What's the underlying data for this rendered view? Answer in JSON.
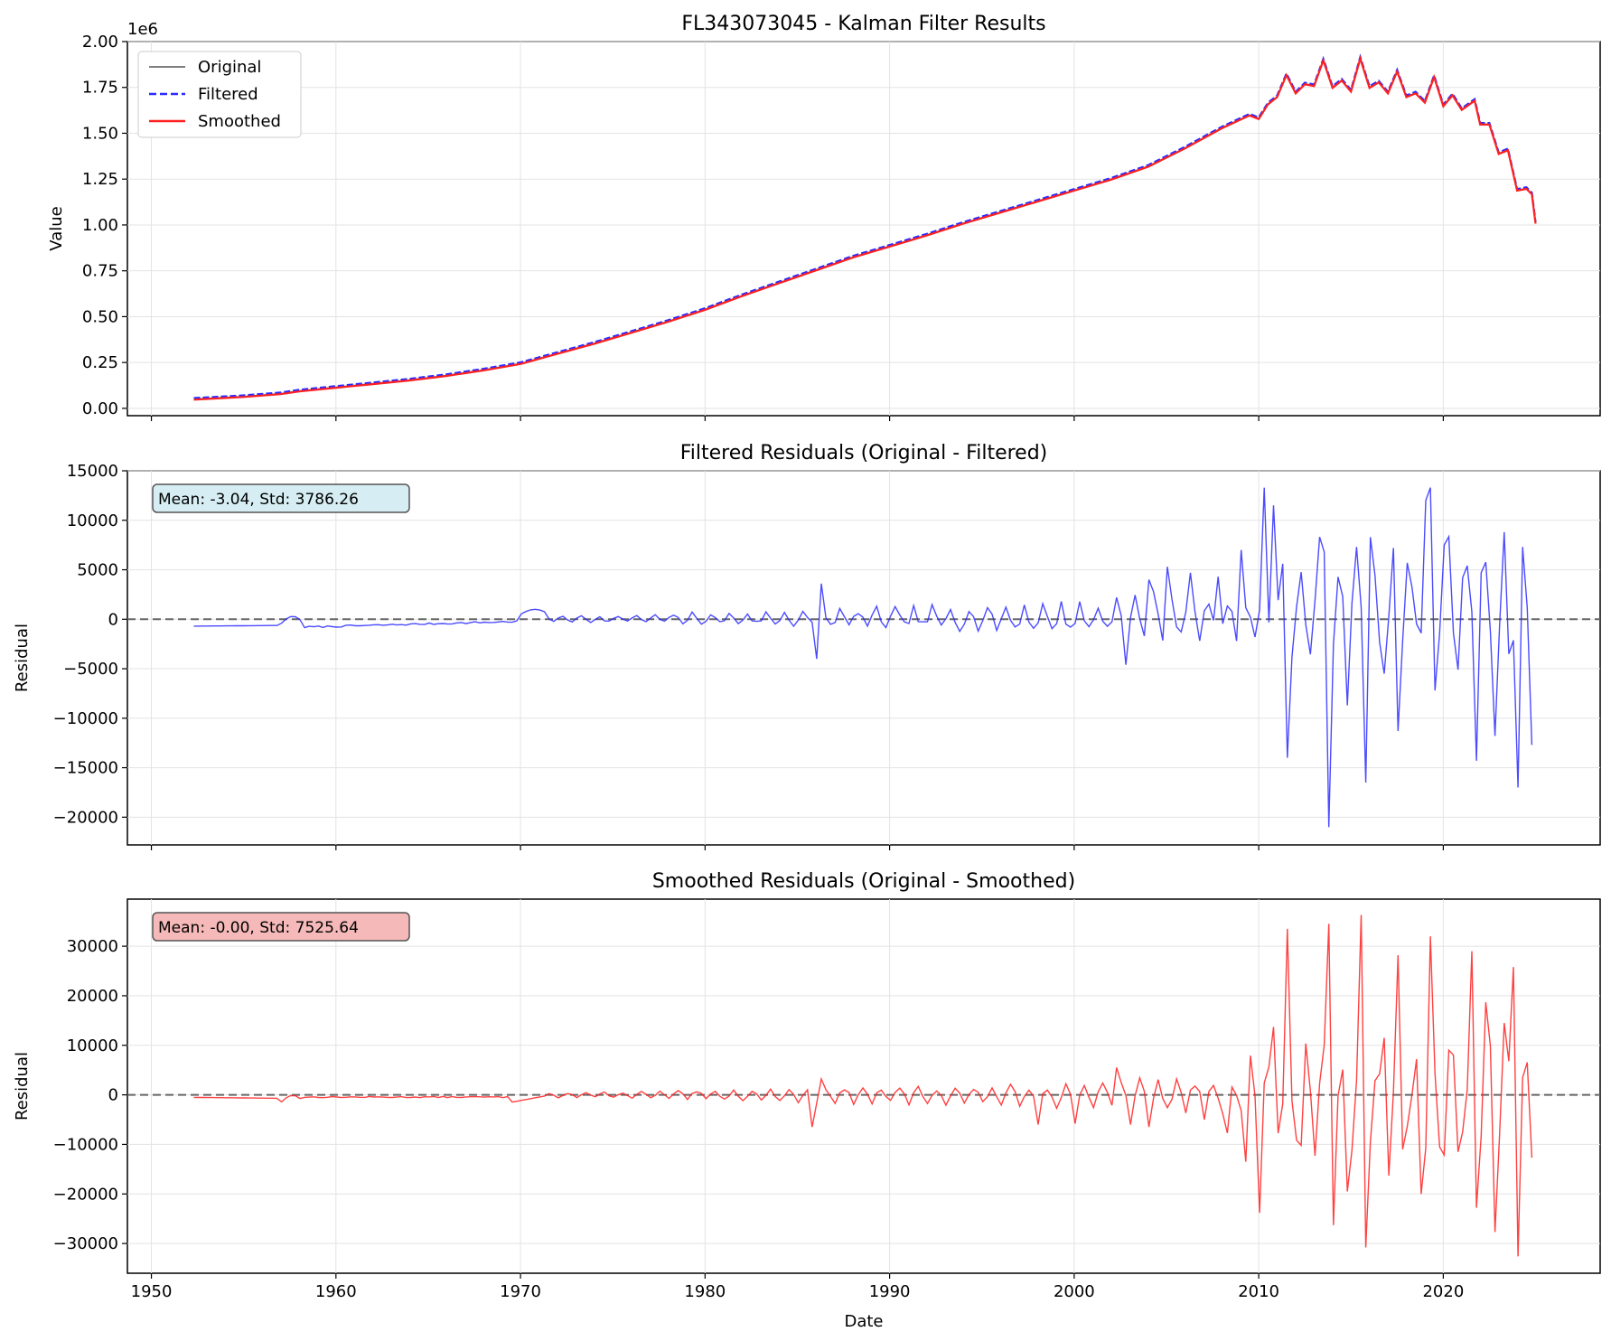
{
  "chart_data": [
    {
      "type": "line",
      "title": "FL343073045 - Kalman Filter Results",
      "xlabel": "",
      "ylabel": "Value",
      "offset_label": "1e6",
      "xlim": [
        1948.7,
        2028.5
      ],
      "ylim": [
        -0.04,
        2.0
      ],
      "xticks": [
        1950,
        1960,
        1970,
        1980,
        1990,
        2000,
        2010,
        2020
      ],
      "yticks": [
        0.0,
        0.25,
        0.5,
        0.75,
        1.0,
        1.25,
        1.5,
        1.75,
        2.0
      ],
      "ytick_labels": [
        "0.00",
        "0.25",
        "0.50",
        "0.75",
        "1.00",
        "1.25",
        "1.50",
        "1.75",
        "2.00"
      ],
      "grid": true,
      "legend": "top-left",
      "series": [
        {
          "name": "Original",
          "color": "#555555",
          "style": "solid"
        },
        {
          "name": "Filtered",
          "color": "#2b2bff",
          "style": "dashed"
        },
        {
          "name": "Smoothed",
          "color": "#ff2020",
          "style": "solid"
        }
      ],
      "points": [
        [
          1952.3,
          0.05
        ],
        [
          1955.0,
          0.065
        ],
        [
          1957.0,
          0.08
        ],
        [
          1958.0,
          0.095
        ],
        [
          1960.0,
          0.115
        ],
        [
          1962.0,
          0.135
        ],
        [
          1964.0,
          0.155
        ],
        [
          1966.0,
          0.18
        ],
        [
          1968.0,
          0.21
        ],
        [
          1970.0,
          0.245
        ],
        [
          1972.0,
          0.3
        ],
        [
          1974.0,
          0.355
        ],
        [
          1976.0,
          0.415
        ],
        [
          1978.0,
          0.475
        ],
        [
          1980.0,
          0.54
        ],
        [
          1982.0,
          0.615
        ],
        [
          1984.0,
          0.685
        ],
        [
          1986.0,
          0.755
        ],
        [
          1988.0,
          0.825
        ],
        [
          1990.0,
          0.885
        ],
        [
          1992.0,
          0.945
        ],
        [
          1994.0,
          1.01
        ],
        [
          1996.0,
          1.07
        ],
        [
          1998.0,
          1.13
        ],
        [
          2000.0,
          1.19
        ],
        [
          2002.0,
          1.25
        ],
        [
          2004.0,
          1.32
        ],
        [
          2006.0,
          1.42
        ],
        [
          2008.0,
          1.53
        ],
        [
          2009.5,
          1.6
        ],
        [
          2010.0,
          1.58
        ],
        [
          2010.5,
          1.66
        ],
        [
          2011.0,
          1.7
        ],
        [
          2011.5,
          1.82
        ],
        [
          2012.0,
          1.72
        ],
        [
          2012.5,
          1.77
        ],
        [
          2013.0,
          1.76
        ],
        [
          2013.5,
          1.9
        ],
        [
          2014.0,
          1.75
        ],
        [
          2014.5,
          1.79
        ],
        [
          2015.0,
          1.73
        ],
        [
          2015.5,
          1.91
        ],
        [
          2016.0,
          1.75
        ],
        [
          2016.5,
          1.78
        ],
        [
          2017.0,
          1.72
        ],
        [
          2017.5,
          1.84
        ],
        [
          2018.0,
          1.7
        ],
        [
          2018.5,
          1.72
        ],
        [
          2019.0,
          1.67
        ],
        [
          2019.5,
          1.81
        ],
        [
          2020.0,
          1.65
        ],
        [
          2020.5,
          1.71
        ],
        [
          2021.0,
          1.63
        ],
        [
          2021.7,
          1.68
        ],
        [
          2022.0,
          1.55
        ],
        [
          2022.5,
          1.55
        ],
        [
          2023.0,
          1.39
        ],
        [
          2023.5,
          1.41
        ],
        [
          2024.0,
          1.19
        ],
        [
          2024.5,
          1.2
        ],
        [
          2024.8,
          1.17
        ],
        [
          2025.0,
          1.01
        ]
      ]
    },
    {
      "type": "line",
      "title": "Filtered Residuals (Original - Filtered)",
      "xlabel": "",
      "ylabel": "Residual",
      "xlim": [
        1948.7,
        2028.5
      ],
      "ylim": [
        -22800,
        15000
      ],
      "yticks": [
        -20000,
        -15000,
        -10000,
        -5000,
        0,
        5000,
        10000,
        15000
      ],
      "grid": true,
      "color": "#2b2bff",
      "annotation": "Mean: -3.04, Std: 3786.26",
      "annotation_box_color": "#d6eef3",
      "reference_line": 0
    },
    {
      "type": "line",
      "title": "Smoothed Residuals (Original - Smoothed)",
      "xlabel": "Date",
      "ylabel": "Residual",
      "xlim": [
        1948.7,
        2028.5
      ],
      "ylim": [
        -36000,
        39500
      ],
      "yticks": [
        -30000,
        -20000,
        -10000,
        0,
        10000,
        20000,
        30000
      ],
      "grid": true,
      "color": "#ff2020",
      "annotation": "Mean: -0.00, Std: 7525.64",
      "annotation_box_color": "#f5b9b9",
      "reference_line": 0
    }
  ]
}
